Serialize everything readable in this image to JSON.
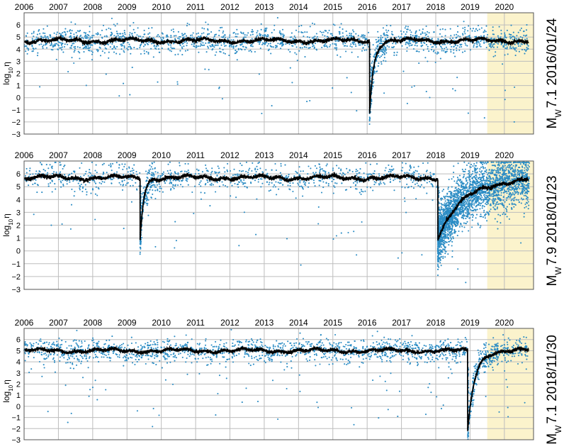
{
  "chart_data": [
    {
      "type": "scatter",
      "title": "M",
      "title_sub": "W",
      "title_rest": "7.1 2016/01/24",
      "ylabel": "log",
      "ylabel_sub": "10",
      "ylabel_sym": "η",
      "xlim": [
        2006,
        2020.85
      ],
      "ylim": [
        -3,
        7
      ],
      "yticks": [
        -3,
        -2,
        -1,
        0,
        1,
        2,
        3,
        4,
        5,
        6
      ],
      "xticks": [
        "2006",
        "2007",
        "2008",
        "2009",
        "2010",
        "2011",
        "2012",
        "2013",
        "2014",
        "2015",
        "2016",
        "2017",
        "2018",
        "2019",
        "2020"
      ],
      "highlight_range": [
        2019.5,
        2020.85
      ],
      "grid": true,
      "baseline": 4.7,
      "drops": [
        {
          "t": 2016.07,
          "value": -1.3,
          "recovery_years": 0.35
        }
      ],
      "series": [
        {
          "values_desc": "scatter points"
        },
        {
          "values_desc": "running median"
        }
      ]
    },
    {
      "type": "scatter",
      "title": "M",
      "title_sub": "W",
      "title_rest": "7.9 2018/01/23",
      "ylabel": "log",
      "ylabel_sub": "10",
      "ylabel_sym": "η",
      "xlim": [
        2006,
        2020.85
      ],
      "ylim": [
        -3,
        7
      ],
      "yticks": [
        -3,
        -2,
        -1,
        0,
        1,
        2,
        3,
        4,
        5,
        6
      ],
      "xticks": [
        "2006",
        "2007",
        "2008",
        "2009",
        "2010",
        "2011",
        "2012",
        "2013",
        "2014",
        "2015",
        "2016",
        "2017",
        "2018",
        "2019",
        "2020"
      ],
      "highlight_range": [
        2019.5,
        2020.85
      ],
      "grid": true,
      "baseline": 5.7,
      "drops": [
        {
          "t": 2009.38,
          "value": 0.8,
          "recovery_years": 0.3
        },
        {
          "t": 2018.06,
          "value": 1.0,
          "recovery_years": 2.3
        }
      ],
      "series": [
        {
          "values_desc": "scatter points"
        },
        {
          "values_desc": "running median"
        }
      ]
    },
    {
      "type": "scatter",
      "title": "M",
      "title_sub": "W",
      "title_rest": "7.1 2018/11/30",
      "ylabel": "log",
      "ylabel_sub": "10",
      "ylabel_sym": "η",
      "xlim": [
        2006,
        2020.85
      ],
      "ylim": [
        -3,
        7
      ],
      "yticks": [
        -3,
        -2,
        -1,
        0,
        1,
        2,
        3,
        4,
        5,
        6
      ],
      "xticks": [
        "2006",
        "2007",
        "2008",
        "2009",
        "2010",
        "2011",
        "2012",
        "2013",
        "2014",
        "2015",
        "2016",
        "2017",
        "2018",
        "2019",
        "2020"
      ],
      "highlight_range": [
        2019.5,
        2020.85
      ],
      "grid": true,
      "baseline": 5.0,
      "drops": [
        {
          "t": 2018.93,
          "value": -2.3,
          "recovery_years": 0.6
        }
      ],
      "series": [
        {
          "values_desc": "scatter points"
        },
        {
          "values_desc": "running median"
        }
      ]
    }
  ],
  "colors": {
    "points": "#2b8cc4",
    "median": "#000000",
    "highlight": "#fbf3cc",
    "grid": "#bdbdbd",
    "frame": "#555555"
  }
}
